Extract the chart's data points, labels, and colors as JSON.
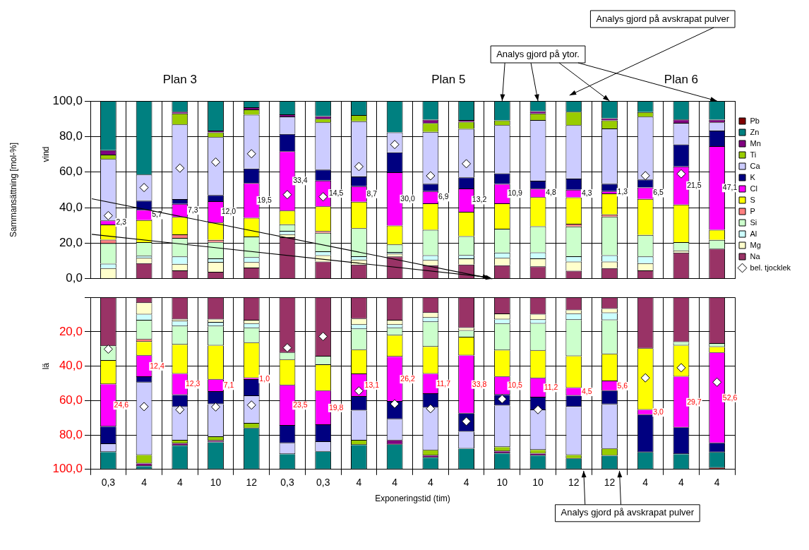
{
  "chart_data": [
    {
      "type": "bar",
      "stacked": true,
      "ylabel": "Sammansättning [mol-%]",
      "ylim": [
        0,
        100
      ],
      "yticks": [
        {
          "value": 100,
          "label": "100,0"
        },
        {
          "value": 80,
          "label": "80,0"
        },
        {
          "value": 60,
          "label": "60,0"
        },
        {
          "value": 40,
          "label": "40,0"
        },
        {
          "value": 20,
          "label": "20,0"
        },
        {
          "value": 0,
          "label": "0,0"
        }
      ],
      "grid": true,
      "legend": "right",
      "marker": "diamond",
      "tick_labels": "y",
      "categories": [
        "0,3",
        "4",
        "4",
        "10",
        "12",
        "0,3",
        "0,3",
        "4",
        "4",
        "4",
        "4",
        "10",
        "10",
        "12",
        "12",
        "4",
        "4",
        "4"
      ],
      "annotations": [
        "Plan 3",
        "Plan 5",
        "Plan 6",
        "vind",
        "Analys gjord på ytor.",
        "Analys gjord på avskrapat pulver"
      ],
      "series": [
        {
          "name": "Na",
          "color": "#993366",
          "values": [
            null,
            8.8,
            4.7,
            3.9,
            6.3,
            23.4,
            9.7,
            8,
            12.5,
            7.6,
            8,
            7.6,
            7,
            4.5,
            6,
            4.7,
            14.7,
            16.9
          ]
        },
        {
          "name": "Mg",
          "color": "#ffffcc",
          "values": [
            6,
            2.9,
            3.7,
            5.6,
            3.1,
            1.6,
            3.5,
            2.7,
            1.6,
            2.9,
            3.4,
            4.1,
            4.4,
            5.2,
            3.7,
            4.1,
            1.2,
            null
          ]
        },
        {
          "name": "Al",
          "color": "#ccffff",
          "values": [
            2.5,
            1.2,
            4.1,
            1.9,
            2.7,
            1.9,
            2.2,
            1.9,
            0.9,
            2.7,
            1.9,
            3,
            3.4,
            2.9,
            3.5,
            3.7,
            null,
            null
          ]
        },
        {
          "name": "Si",
          "color": "#ccffcc",
          "values": [
            11.5,
            7.7,
            10.5,
            9.3,
            11.6,
            3.7,
            10.4,
            15.8,
            4.3,
            14.3,
            10.6,
            13.4,
            14.7,
            16.8,
            21.8,
            12.1,
            4.7,
            5
          ]
        },
        {
          "name": "P",
          "color": "#ff8080",
          "values": [
            2,
            null,
            1.9,
            1.2,
            null,
            null,
            1,
            null,
            null,
            null,
            null,
            null,
            null,
            1.5,
            1.2,
            null,
            null,
            null
          ]
        },
        {
          "name": "S",
          "color": "#ffff00",
          "values": [
            8.5,
            12.4,
            9.9,
            9.7,
            10.6,
            7.7,
            13.9,
            14.9,
            10.6,
            14.9,
            13.7,
            14.3,
            16.4,
            14.9,
            11.8,
            20.3,
            21.1,
            5.6
          ]
        },
        {
          "name": "Cl",
          "color": "#ff00ff",
          "values": [
            2.3,
            5.7,
            7.3,
            12,
            19.5,
            33.4,
            14.5,
            8.7,
            30,
            6.9,
            13.2,
            10.9,
            4.8,
            4.3,
            1.3,
            6.5,
            21.5,
            47.1
          ],
          "value_labels": [
            "2,3",
            "5,7",
            "7,3",
            "12,0",
            "19,5",
            "33,4",
            "14,5",
            "8,7",
            "30,0",
            "6,9",
            "13,2",
            "10,9",
            "4,8",
            "4,3",
            "1,3",
            "6,5",
            "21,5",
            "47,1"
          ]
        },
        {
          "name": "K",
          "color": "#000080",
          "values": [
            null,
            5.2,
            2.7,
            3.5,
            8.2,
            9.7,
            6.2,
            5.5,
            11.2,
            4.1,
            6.2,
            6,
            4.4,
            6.2,
            4.1,
            4.4,
            12.4,
            8.7
          ]
        },
        {
          "name": "Ca",
          "color": "#ccccff",
          "values": [
            34.5,
            14.7,
            42,
            32.5,
            30.3,
            9.9,
            26.6,
            31.1,
            11.2,
            29.2,
            27.3,
            27.1,
            34.2,
            30.1,
            31.1,
            35.4,
            12.1,
            4.7
          ]
        },
        {
          "name": "Ti",
          "color": "#99cc00",
          "values": [
            2.5,
            null,
            6.2,
            2.7,
            2.9,
            null,
            2,
            3.5,
            null,
            5,
            4,
            2.7,
            3.7,
            7.5,
            4.6,
            2.5,
            null,
            null
          ]
        },
        {
          "name": "Mn",
          "color": "#800080",
          "values": [
            2.5,
            null,
            0.9,
            1,
            1.2,
            1.2,
            1.5,
            null,
            null,
            1.9,
            1,
            null,
            1.2,
            null,
            1.2,
            null,
            1.9,
            1.5
          ]
        },
        {
          "name": "Zn",
          "color": "#008080",
          "values": [
            27.7,
            41.4,
            6.1,
            16.7,
            3.6,
            7.5,
            8.5,
            7.9,
            17.7,
            10.5,
            10.7,
            10.9,
            5.8,
            6.1,
            9.7,
            6.3,
            10.4,
            10.5
          ]
        },
        {
          "name": "Pb",
          "color": "#800000",
          "values": [
            null,
            null,
            null,
            null,
            null,
            null,
            null,
            null,
            null,
            null,
            null,
            null,
            null,
            null,
            null,
            null,
            null,
            null
          ]
        },
        {
          "name": "bel. tjocklek",
          "type": "scatter",
          "color": "#ffffff",
          "values": [
            35.5,
            51.3,
            62.2,
            65.6,
            70.3,
            47.3,
            46.1,
            63.1,
            75.5,
            57.9,
            64.7,
            null,
            null,
            null,
            null,
            58,
            59,
            null
          ]
        }
      ]
    },
    {
      "type": "bar",
      "stacked": true,
      "xlabel": "Exponeringstid (tim)",
      "ylim": [
        100,
        0
      ],
      "yticks": [
        {
          "value": 0,
          "label": null
        },
        {
          "value": 20,
          "label": "20,0"
        },
        {
          "value": 40,
          "label": "40,0"
        },
        {
          "value": 60,
          "label": "60,0"
        },
        {
          "value": 80,
          "label": "80,0"
        },
        {
          "value": 100,
          "label": "100,0"
        }
      ],
      "grid": true,
      "marker": "diamond",
      "categories": [
        "0,3",
        "4",
        "4",
        "10",
        "12",
        "0,3",
        "0,3",
        "4",
        "4",
        "4",
        "4",
        "10",
        "10",
        "12",
        "12",
        "4",
        "4",
        "4"
      ],
      "annotations": [
        "lä",
        "Analys gjord på avskrapat pulver"
      ],
      "series": [
        {
          "color": "#993366",
          "values": [
            28.3,
            3.3,
            12.8,
            12.8,
            13.5,
            32.2,
            34.4,
            12.5,
            13.5,
            9.1,
            17.8,
            9.8,
            10,
            7.5,
            6.7,
            29.8,
            26,
            27
          ]
        },
        {
          "color": "#ffffcc",
          "values": [
            null,
            6.7,
            1.2,
            1.9,
            1.9,
            null,
            null,
            3.5,
            2.5,
            2.8,
            1.6,
            3.1,
            3.2,
            2.2,
            2.5,
            null,
            null,
            null
          ]
        },
        {
          "color": "#ccffff",
          "values": [
            null,
            3.5,
            2.8,
            2.2,
            2.5,
            null,
            null,
            2.5,
            1.9,
            2.5,
            null,
            2.5,
            2.1,
            3.5,
            4.1,
            null,
            null,
            null
          ]
        },
        {
          "color": "#ccffcc",
          "values": [
            8.6,
            10.9,
            10.7,
            11.1,
            8.6,
            4.1,
            4.9,
            12.1,
            4.3,
            14.4,
            3.9,
            15.4,
            15.7,
            21,
            19.8,
            null,
            2,
            1.9
          ]
        },
        {
          "color": "#ff8080",
          "values": [
            null,
            1.5,
            null,
            null,
            null,
            null,
            null,
            null,
            null,
            null,
            null,
            null,
            null,
            null,
            null,
            null,
            null,
            null
          ]
        },
        {
          "color": "#ffff00",
          "values": [
            13.6,
            8,
            17,
            19.8,
            20.4,
            14.8,
            15.1,
            14.1,
            12.3,
            15.7,
            10.5,
            15.4,
            16,
            18.5,
            15.7,
            35.6,
            18.1,
            3.3
          ]
        },
        {
          "color": "#ff00ff",
          "values": [
            24.6,
            12.4,
            12.3,
            7.1,
            1,
            23.5,
            19.8,
            13.1,
            26.2,
            11.7,
            33.8,
            10.5,
            11.2,
            4.5,
            5.6,
            3,
            29.7,
            52.6
          ],
          "value_labels": [
            "24,6",
            "12,4",
            "12,3",
            "7,1",
            "1,0",
            "23,5",
            "19,8",
            "13,1",
            "26,2",
            "11,7",
            "33,8",
            "10,5",
            "11,2",
            "4,5",
            "5,6",
            "3,0",
            "29,7",
            "52,6"
          ]
        },
        {
          "color": "#000080",
          "values": [
            10.2,
            3.2,
            7,
            7.2,
            9.5,
            10.2,
            9.9,
            8,
            10.1,
            8,
            10.5,
            6.2,
            7.4,
            6.4,
            7.8,
            21.7,
            15.4,
            5.3
          ]
        },
        {
          "color": "#ccccff",
          "values": [
            4.6,
            42.2,
            19.5,
            19.1,
            16,
            6.4,
            5.6,
            17.5,
            12.3,
            24.7,
            9.9,
            24.1,
            23.1,
            28.1,
            25.9,
            null,
            null,
            null
          ]
        },
        {
          "color": "#99cc00",
          "values": [
            null,
            4.9,
            1.7,
            2.2,
            2.8,
            null,
            null,
            2.5,
            null,
            3.1,
            null,
            2.5,
            2.1,
            2.1,
            4,
            null,
            null,
            null
          ]
        },
        {
          "color": "#800080",
          "values": [
            null,
            1.5,
            1.2,
            0.9,
            null,
            null,
            null,
            null,
            2.5,
            1.2,
            null,
            1.2,
            1.2,
            null,
            null,
            null,
            null,
            null
          ]
        },
        {
          "color": "#008080",
          "values": [
            10.1,
            1.9,
            13.8,
            15.7,
            23.8,
            8.8,
            10.3,
            14.2,
            14.4,
            6.8,
            12,
            9.3,
            8,
            6.2,
            7.9,
            9.9,
            8.8,
            9.1
          ]
        },
        {
          "color": "#800000",
          "values": [
            null,
            null,
            null,
            null,
            null,
            null,
            null,
            null,
            null,
            null,
            null,
            null,
            null,
            null,
            null,
            null,
            null,
            0.8
          ]
        },
        {
          "type": "scatter",
          "color": "#ffffff",
          "values": [
            30.1,
            63.5,
            65.3,
            63.7,
            62.6,
            29.3,
            22.7,
            54.4,
            61.9,
            64.7,
            72.1,
            59.1,
            65.3,
            null,
            null,
            46.8,
            40.9,
            49.3
          ]
        }
      ]
    }
  ]
}
